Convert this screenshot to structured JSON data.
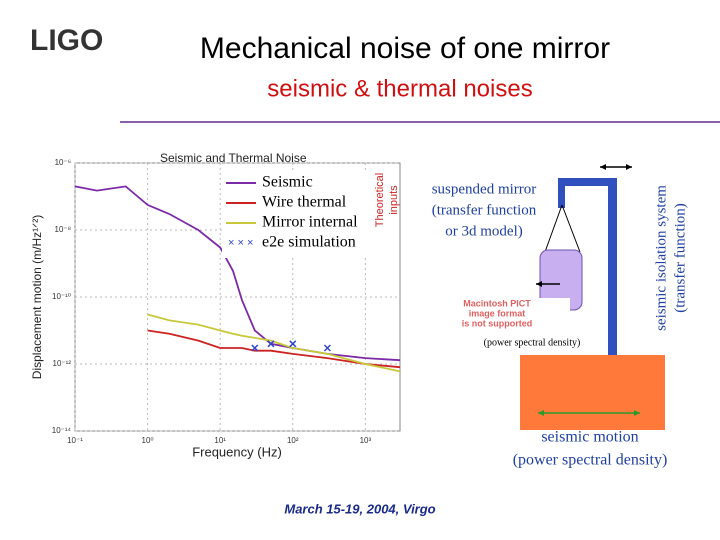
{
  "slide": {
    "logo": "LIGO",
    "title": "Mechanical noise of one mirror",
    "subtitle": "seismic & thermal noises",
    "mirror_note": [
      "suspended mirror",
      "(transfer function",
      "or 3d model)"
    ],
    "pict_note": [
      "Macintosh PICT",
      "image format",
      "is not supported"
    ],
    "psd_note": "(power spectral density)",
    "isolation_note": [
      "seismic isolation system",
      "(transfer function)"
    ],
    "ground_note": [
      "seismic motion",
      "(power spectral density)"
    ],
    "footer": "March 15-19, 2004, Virgo"
  },
  "chart_data": {
    "type": "line",
    "title": "Seismic and Thermal Noise",
    "x_label": "Frequency (Hz)",
    "y_label": "Displacement motion (m/Hz¹ᐟ²)",
    "legend_note": [
      "Theoretical",
      "inputs"
    ],
    "log_x": true,
    "log_y": true,
    "grid": true,
    "x": [
      0.1,
      0.2,
      0.5,
      1,
      2,
      5,
      10,
      15,
      20,
      30,
      50,
      100,
      300,
      1000,
      3000
    ],
    "series": [
      {
        "name": "Seismic",
        "color": "#7b2aa8",
        "values": [
          2e-07,
          1.5e-07,
          2e-07,
          5.6e-08,
          3e-08,
          1e-08,
          3e-09,
          6e-10,
          8e-11,
          1e-11,
          4e-12,
          3e-12,
          2e-12,
          1.5e-12,
          1.3e-12
        ]
      },
      {
        "name": "Wire thermal",
        "color": "#cc2222",
        "values": [
          null,
          null,
          null,
          1e-11,
          8e-12,
          5e-12,
          3e-12,
          3e-12,
          3e-12,
          2.5e-12,
          2.5e-12,
          2e-12,
          1.5e-12,
          1e-12,
          8e-13
        ]
      },
      {
        "name": "Mirror internal",
        "color": "#c8c83a",
        "values": [
          null,
          null,
          null,
          3e-11,
          2e-11,
          1.5e-11,
          1e-11,
          8e-12,
          7e-12,
          6e-12,
          5e-12,
          3e-12,
          2e-12,
          1e-12,
          6e-13
        ]
      },
      {
        "name": "e2e simulation",
        "color": "#3344cc",
        "marker": "x",
        "values": [
          null,
          null,
          null,
          null,
          null,
          null,
          null,
          null,
          null,
          3e-12,
          4e-12,
          4e-12,
          3e-12,
          null,
          null
        ]
      }
    ],
    "xlim": [
      0.1,
      3000
    ],
    "xticks": [
      {
        "value": 0.1,
        "label": "10⁻¹"
      },
      {
        "value": 1,
        "label": "10⁰"
      },
      {
        "value": 10,
        "label": "10¹"
      },
      {
        "value": 100,
        "label": "10²"
      },
      {
        "value": 1000,
        "label": "10³"
      }
    ],
    "ylim": [
      1e-14,
      1e-06
    ],
    "yticks": [
      {
        "value": 1e-06,
        "label": "10⁻⁶"
      },
      {
        "value": 1e-08,
        "label": "10⁻⁸"
      },
      {
        "value": 1e-10,
        "label": "10⁻¹⁰"
      },
      {
        "value": 1e-12,
        "label": "10⁻¹²"
      },
      {
        "value": 1e-14,
        "label": "10⁻¹⁴"
      }
    ]
  }
}
